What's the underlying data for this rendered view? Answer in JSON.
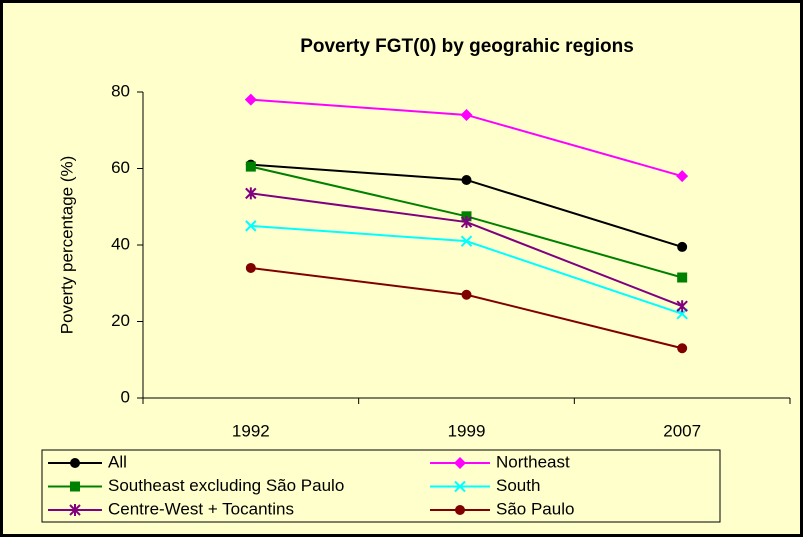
{
  "chart_data": {
    "type": "line",
    "title": "Poverty FGT(0) by geograhic regions",
    "y_label": "Poverty percentage (%)",
    "categories": [
      "1992",
      "1999",
      "2007"
    ],
    "ylim": [
      0,
      80
    ],
    "yticks": [
      0,
      20,
      40,
      60,
      80
    ],
    "series": [
      {
        "name": "All",
        "color": "#000000",
        "marker": "circle",
        "values": [
          61,
          57,
          39.5
        ]
      },
      {
        "name": "Northeast",
        "color": "#FF00FF",
        "marker": "diamond",
        "values": [
          78,
          74,
          58
        ]
      },
      {
        "name": "Southeast excluding São Paulo",
        "color": "#008000",
        "marker": "square",
        "values": [
          60.5,
          47.5,
          31.5
        ]
      },
      {
        "name": "South",
        "color": "#00FFFF",
        "marker": "x",
        "values": [
          45,
          41,
          22
        ]
      },
      {
        "name": "Centre-West + Tocantins",
        "color": "#800080",
        "marker": "asterisk",
        "values": [
          53.5,
          46,
          24
        ]
      },
      {
        "name": "São Paulo",
        "color": "#800000",
        "marker": "circle",
        "values": [
          34,
          27,
          13
        ]
      }
    ]
  }
}
